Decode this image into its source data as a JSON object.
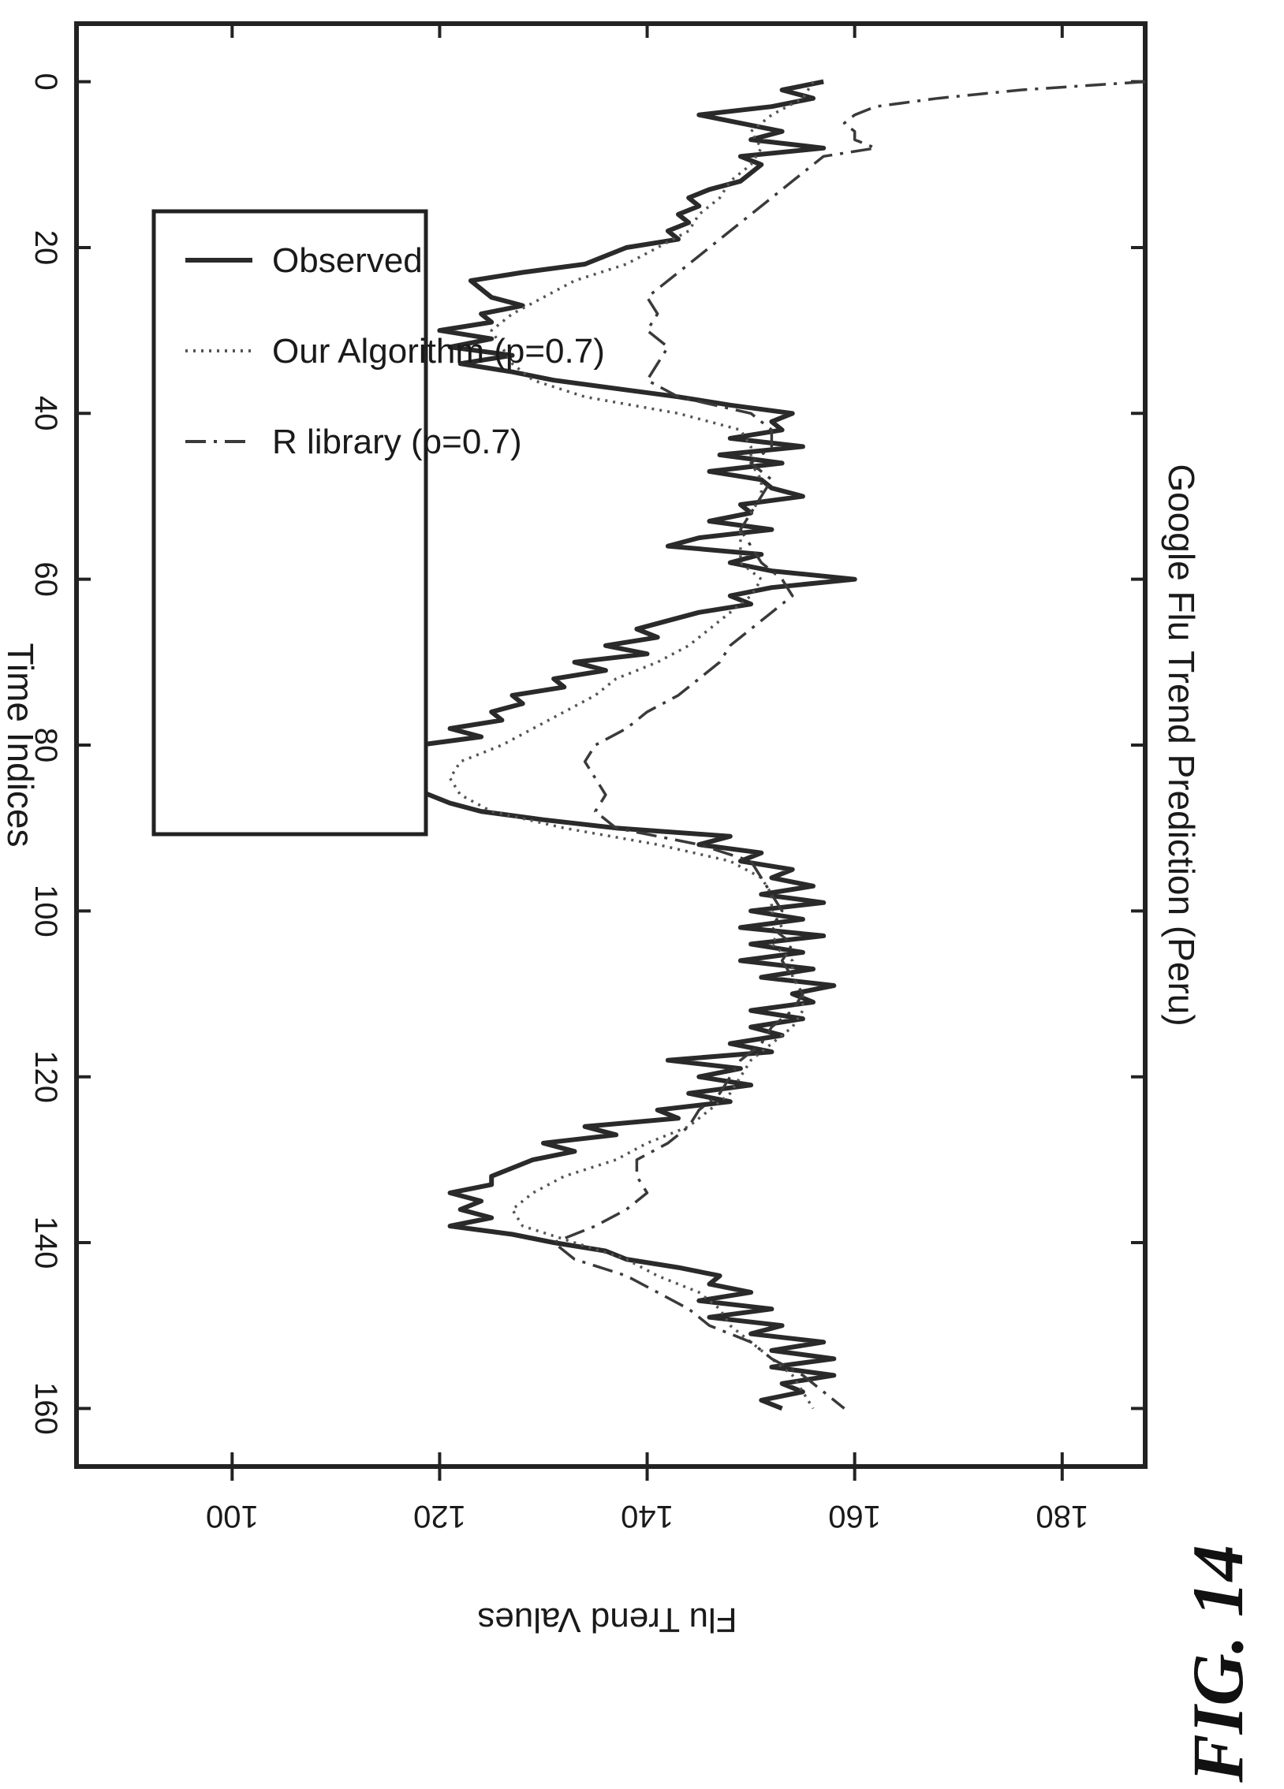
{
  "figure_label": "FIG. 14",
  "chart_data": {
    "type": "line",
    "title": "Google Flu Trend Prediction (Peru)",
    "xlabel": "Time Indices",
    "ylabel": "Flu Trend Values",
    "xlim": [
      -7,
      167
    ],
    "ylim": [
      85,
      188
    ],
    "x_ticks": [
      0,
      20,
      40,
      60,
      80,
      100,
      120,
      140,
      160
    ],
    "y_ticks": [
      100,
      120,
      140,
      160,
      180
    ],
    "grid": false,
    "legend_position": "top-left",
    "series": [
      {
        "name": "Observed",
        "style": "solid",
        "color": "#2a2a2a",
        "x": [
          0,
          1,
          2,
          3,
          4,
          5,
          6,
          7,
          8,
          9,
          10,
          11,
          12,
          13,
          14,
          15,
          16,
          17,
          18,
          19,
          20,
          21,
          22,
          23,
          24,
          25,
          26,
          27,
          28,
          29,
          30,
          31,
          32,
          33,
          34,
          35,
          36,
          37,
          38,
          39,
          40,
          41,
          42,
          43,
          44,
          45,
          46,
          47,
          48,
          49,
          50,
          51,
          52,
          53,
          54,
          55,
          56,
          57,
          58,
          59,
          60,
          61,
          62,
          63,
          64,
          65,
          66,
          67,
          68,
          69,
          70,
          71,
          72,
          73,
          74,
          75,
          76,
          77,
          78,
          79,
          80,
          81,
          82,
          83,
          84,
          85,
          86,
          87,
          88,
          89,
          90,
          91,
          92,
          93,
          94,
          95,
          96,
          97,
          98,
          99,
          100,
          101,
          102,
          103,
          104,
          105,
          106,
          107,
          108,
          109,
          110,
          111,
          112,
          113,
          114,
          115,
          116,
          117,
          118,
          119,
          120,
          121,
          122,
          123,
          124,
          125,
          126,
          127,
          128,
          129,
          130,
          131,
          132,
          133,
          134,
          135,
          136,
          137,
          138,
          139,
          140,
          141,
          142,
          143,
          144,
          145,
          146,
          147,
          148,
          149,
          150,
          151,
          152,
          153,
          154,
          155,
          156,
          157,
          158,
          159,
          160
        ],
        "y": [
          157,
          153,
          156,
          152,
          145,
          149,
          153,
          150,
          157,
          149,
          151,
          150,
          149,
          146,
          144,
          145,
          143,
          144,
          142,
          143,
          138,
          136,
          134,
          128,
          123,
          124,
          125,
          128,
          124,
          125,
          120,
          125,
          121,
          127,
          122,
          127,
          131,
          137,
          143,
          148,
          154,
          152,
          153,
          148,
          155,
          147,
          153,
          146,
          151,
          152,
          155,
          149,
          150,
          146,
          152,
          145,
          142,
          151,
          148,
          152,
          160,
          152,
          148,
          150,
          145,
          142,
          139,
          141,
          136,
          140,
          133,
          136,
          131,
          132,
          127,
          128,
          125,
          126,
          121,
          124,
          118,
          117,
          113,
          116,
          118,
          117,
          119,
          121,
          124,
          130,
          137,
          148,
          145,
          151,
          149,
          154,
          152,
          156,
          151,
          157,
          150,
          155,
          149,
          157,
          150,
          155,
          149,
          156,
          151,
          158,
          154,
          156,
          150,
          155,
          150,
          153,
          148,
          152,
          142,
          149,
          145,
          150,
          144,
          148,
          141,
          143,
          134,
          137,
          130,
          133,
          129,
          127,
          125,
          125,
          121,
          124,
          122,
          125,
          121,
          127,
          131,
          136,
          138,
          143,
          147,
          146,
          150,
          145,
          152,
          146,
          153,
          150,
          157,
          152,
          158,
          152,
          158,
          153,
          155,
          151,
          153
        ]
      },
      {
        "name": "Our Algorithm (p=0.7)",
        "style": "dotted",
        "color": "#555555",
        "x": [
          0,
          2,
          4,
          6,
          8,
          10,
          12,
          14,
          16,
          18,
          20,
          22,
          24,
          26,
          28,
          30,
          32,
          34,
          36,
          38,
          40,
          42,
          44,
          46,
          48,
          50,
          52,
          54,
          56,
          58,
          60,
          62,
          64,
          66,
          68,
          70,
          72,
          74,
          76,
          78,
          80,
          82,
          84,
          86,
          88,
          90,
          92,
          94,
          96,
          98,
          100,
          102,
          104,
          106,
          108,
          110,
          112,
          114,
          116,
          118,
          120,
          122,
          124,
          126,
          128,
          130,
          132,
          134,
          136,
          138,
          140,
          142,
          144,
          146,
          148,
          150,
          152,
          154,
          156,
          158,
          160
        ],
        "y": [
          156,
          155,
          152,
          150,
          151,
          150,
          148,
          147,
          145,
          144,
          141,
          138,
          133,
          130,
          127,
          125,
          126,
          127,
          129,
          134,
          143,
          149,
          150,
          150,
          151,
          151,
          150,
          149,
          149,
          149,
          151,
          150,
          148,
          146,
          144,
          141,
          137,
          135,
          132,
          129,
          126,
          122,
          121,
          122,
          125,
          132,
          141,
          148,
          151,
          152,
          152,
          153,
          152,
          154,
          154,
          155,
          155,
          154,
          152,
          150,
          149,
          148,
          146,
          144,
          140,
          137,
          132,
          129,
          127,
          128,
          133,
          138,
          141,
          145,
          147,
          148,
          150,
          152,
          154,
          155,
          156
        ]
      },
      {
        "name": "R library (p=0.7)",
        "style": "dashdot",
        "color": "#3a3a3a",
        "x": [
          0,
          1,
          2,
          3,
          4,
          5,
          6,
          7,
          8,
          9,
          10,
          12,
          14,
          16,
          18,
          20,
          22,
          24,
          26,
          28,
          30,
          32,
          34,
          36,
          38,
          40,
          42,
          44,
          46,
          48,
          50,
          52,
          54,
          56,
          58,
          60,
          62,
          64,
          66,
          68,
          70,
          72,
          74,
          76,
          78,
          80,
          82,
          84,
          86,
          88,
          90,
          92,
          94,
          96,
          98,
          100,
          102,
          104,
          106,
          108,
          110,
          112,
          114,
          116,
          118,
          120,
          122,
          124,
          126,
          128,
          130,
          132,
          134,
          136,
          138,
          140,
          142,
          144,
          146,
          148,
          150,
          152,
          154,
          156,
          158,
          160
        ],
        "y": [
          188,
          176,
          168,
          162,
          160,
          159,
          160,
          160,
          162,
          157,
          156,
          154,
          152,
          150,
          148,
          146,
          144,
          142,
          140,
          141,
          140,
          142,
          141,
          140,
          143,
          150,
          152,
          152,
          150,
          152,
          151,
          150,
          149,
          150,
          151,
          153,
          154,
          152,
          150,
          148,
          147,
          145,
          143,
          140,
          138,
          135,
          134,
          135,
          136,
          135,
          137,
          145,
          150,
          151,
          152,
          153,
          152,
          154,
          153,
          154,
          155,
          154,
          152,
          151,
          149,
          148,
          147,
          145,
          144,
          142,
          139,
          139,
          140,
          138,
          135,
          131,
          133,
          138,
          141,
          144,
          146,
          150,
          152,
          155,
          157,
          159
        ]
      }
    ]
  }
}
